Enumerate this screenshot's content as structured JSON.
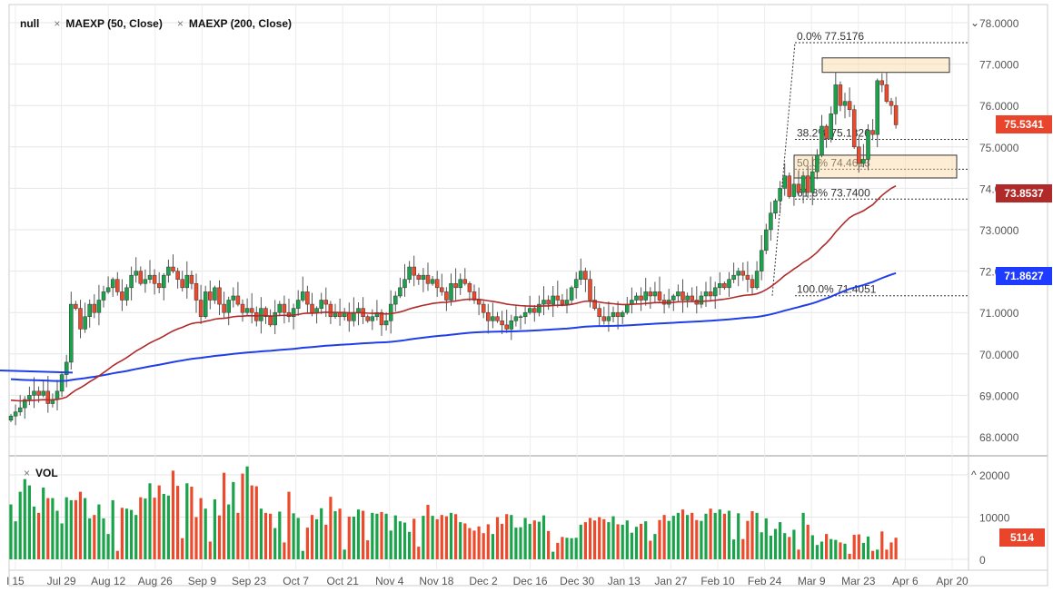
{
  "legend": {
    "symbol": "null",
    "ma1": "MAEXP (50, Close)",
    "ma2": "MAEXP (200, Close)",
    "close_icon": "x-icon"
  },
  "volume_legend": {
    "label": "VOL"
  },
  "controls": {
    "collapse_main": "⌄",
    "collapse_volume": "^"
  },
  "tags": {
    "price": "75.5341",
    "ema50": "73.8537",
    "ema200": "71.8627",
    "volume": "5114"
  },
  "colors": {
    "up": "#1aa34a",
    "down": "#ec4a2c",
    "ema50": "#b02a2a",
    "ema200": "#1f3ee8",
    "price_tag": "#e8452c",
    "ema50_tag": "#b02a2a",
    "ema200_tag": "#1e3cff"
  },
  "chart_data": {
    "type": "candlestick",
    "price_axis": {
      "ticks": [
        "78.0000",
        "77.0000",
        "76.0000",
        "75.0000",
        "74.0000",
        "73.0000",
        "72.0000",
        "71.0000",
        "70.0000",
        "69.0000",
        "68.0000"
      ],
      "range": [
        68,
        78
      ]
    },
    "volume_axis": {
      "ticks": [
        "20000",
        "10000",
        "0"
      ],
      "range": [
        0,
        20000
      ]
    },
    "x_ticks": [
      "l 15",
      "Jul 29",
      "Aug 12",
      "Aug 26",
      "Sep 9",
      "Sep 23",
      "Oct 7",
      "Oct 21",
      "Nov 4",
      "Nov 18",
      "Dec 2",
      "Dec 16",
      "Dec 30",
      "Jan 13",
      "Jan 27",
      "Feb 10",
      "Feb 24",
      "Mar 9",
      "Mar 23",
      "Apr 6",
      "Apr 20"
    ],
    "closes": [
      68.5,
      68.6,
      68.7,
      68.9,
      69.0,
      69.1,
      69.0,
      69.1,
      68.8,
      68.9,
      69.1,
      69.5,
      69.8,
      71.2,
      71.1,
      70.6,
      70.9,
      71.2,
      71.0,
      71.3,
      71.5,
      71.6,
      71.8,
      71.5,
      71.3,
      71.6,
      71.9,
      72.0,
      71.7,
      71.8,
      71.9,
      71.7,
      71.6,
      71.9,
      72.1,
      72.0,
      71.8,
      71.6,
      71.9,
      71.7,
      71.3,
      70.9,
      71.5,
      71.3,
      71.6,
      71.2,
      71.0,
      71.3,
      71.4,
      71.2,
      71.0,
      71.1,
      71.0,
      70.8,
      71.1,
      70.9,
      70.7,
      71.0,
      71.2,
      71.0,
      70.9,
      71.1,
      71.3,
      71.5,
      71.2,
      71.0,
      71.1,
      71.3,
      71.2,
      70.9,
      71.0,
      70.9,
      71.0,
      70.8,
      71.0,
      71.1,
      70.9,
      70.8,
      70.9,
      71.0,
      70.7,
      70.8,
      71.2,
      71.4,
      71.6,
      71.8,
      72.1,
      71.9,
      71.8,
      71.9,
      71.7,
      71.8,
      71.6,
      71.5,
      71.3,
      71.7,
      71.6,
      71.8,
      71.7,
      71.5,
      71.3,
      71.2,
      71.0,
      70.8,
      70.9,
      70.8,
      70.7,
      70.6,
      70.8,
      70.9,
      70.9,
      71.0,
      71.1,
      71.0,
      71.2,
      71.3,
      71.2,
      71.4,
      71.3,
      71.2,
      71.3,
      71.6,
      71.8,
      72.0,
      71.8,
      71.3,
      71.1,
      70.9,
      70.8,
      70.9,
      71.0,
      70.9,
      71.0,
      71.2,
      71.3,
      71.4,
      71.3,
      71.5,
      71.4,
      71.5,
      71.3,
      71.2,
      71.3,
      71.4,
      71.5,
      71.3,
      71.4,
      71.3,
      71.2,
      71.4,
      71.5,
      71.4,
      71.6,
      71.7,
      71.6,
      71.8,
      71.9,
      72.0,
      71.9,
      71.8,
      71.6,
      72.0,
      72.5,
      73.0,
      73.4,
      73.7,
      74.0,
      74.3,
      73.8,
      74.1,
      73.9,
      74.3,
      73.9,
      74.4,
      74.8,
      75.5,
      75.2,
      75.8,
      76.5,
      76.0,
      76.1,
      75.9,
      75.0,
      74.6,
      74.7,
      75.4,
      75.3,
      76.6,
      76.5,
      76.1,
      76.0,
      75.5341
    ],
    "volumes": [
      13000,
      9000,
      16000,
      19000,
      17500,
      12500,
      11000,
      17000,
      14500,
      14500,
      11500,
      8500,
      14700,
      14000,
      14000,
      16000,
      14500,
      9700,
      10500,
      13000,
      9700,
      6000,
      14000,
      2000,
      12200,
      12000,
      11700,
      10500,
      14700,
      14400,
      18000,
      14600,
      17500,
      15500,
      15100,
      21000,
      17400,
      5000,
      18000,
      17200,
      10000,
      14500,
      12000,
      4200,
      14200,
      10400,
      20500,
      13000,
      18300,
      11000,
      20300,
      22000,
      17500,
      17300,
      12000,
      11000,
      10800,
      7400,
      11300,
      4000,
      16000,
      10900,
      9800,
      2000,
      7500,
      10500,
      9500,
      12100,
      8200,
      14800,
      11400,
      12000,
      2300,
      10100,
      10100,
      11800,
      11500,
      4500,
      11000,
      10800,
      11200,
      10800,
      6800,
      10400,
      9000,
      8700,
      6500,
      9600,
      3000,
      10300,
      12900,
      10300,
      9500,
      10500,
      10200,
      11000,
      10700,
      8800,
      8500,
      7400,
      6800,
      7800,
      6200,
      8300,
      6000,
      10000,
      8400,
      10700,
      10500,
      7500,
      7600,
      9800,
      8400,
      9200,
      8900,
      10400,
      6700,
      1800,
      3900,
      5300,
      5100,
      5000,
      5100,
      8200,
      8800,
      9800,
      9200,
      10000,
      9500,
      8800,
      10200,
      8300,
      8200,
      9200,
      6300,
      7700,
      8400,
      9000,
      4400,
      6000,
      9300,
      10500,
      9100,
      10300,
      11000,
      11800,
      10500,
      11000,
      9300,
      9100,
      10800,
      12000,
      11000,
      11800,
      10800,
      11500,
      4700,
      10900,
      4800,
      9100,
      11400,
      11000,
      6400,
      9700,
      5600,
      7200,
      8800,
      6200,
      5300,
      7000,
      2300,
      11000,
      8200,
      5700,
      3400,
      4200,
      6000,
      4800,
      4600,
      4000,
      3700,
      1300,
      5800,
      5900,
      3900,
      5400,
      2000,
      2300,
      6600,
      2300,
      4000,
      5114
    ],
    "fibonacci": [
      {
        "label": "0.0% 77.5176",
        "value": 77.5176
      },
      {
        "label": "38.2% 75.1826",
        "value": 75.1826
      },
      {
        "label": "50.0% 74.4613",
        "value": 74.4613
      },
      {
        "label": "61.8% 73.7400",
        "value": 73.74
      },
      {
        "label": "100.0% 71.4051",
        "value": 71.4051
      }
    ],
    "zones": [
      {
        "from": 76.8,
        "to": 77.15
      },
      {
        "from": 74.25,
        "to": 74.8
      }
    ],
    "series": [
      {
        "name": "MAEXP (50, Close)",
        "last": 73.8537
      },
      {
        "name": "MAEXP (200, Close)",
        "last": 71.8627
      }
    ]
  }
}
